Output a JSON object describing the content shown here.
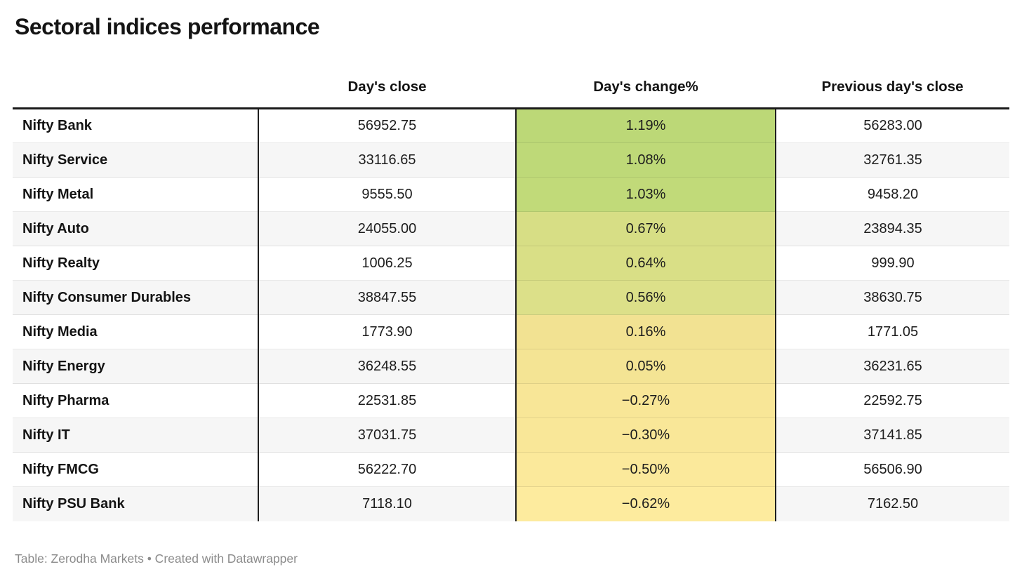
{
  "title": "Sectoral indices performance",
  "table": {
    "columns": {
      "label": "",
      "close": "Day's close",
      "change": "Day's change%",
      "prev": "Previous day's close"
    },
    "rows": [
      {
        "name": "Nifty Bank",
        "close": "56952.75",
        "change": "1.19%",
        "prev": "56283.00",
        "change_color": "#bcd877"
      },
      {
        "name": "Nifty Service",
        "close": "33116.65",
        "change": "1.08%",
        "prev": "32761.35",
        "change_color": "#bed978"
      },
      {
        "name": "Nifty Metal",
        "close": "9555.50",
        "change": "1.03%",
        "prev": "9458.20",
        "change_color": "#c1da79"
      },
      {
        "name": "Nifty Auto",
        "close": "24055.00",
        "change": "0.67%",
        "prev": "23894.35",
        "change_color": "#d7de85"
      },
      {
        "name": "Nifty Realty",
        "close": "1006.25",
        "change": "0.64%",
        "prev": "999.90",
        "change_color": "#d9df86"
      },
      {
        "name": "Nifty Consumer Durables",
        "close": "38847.55",
        "change": "0.56%",
        "prev": "38630.75",
        "change_color": "#dce089"
      },
      {
        "name": "Nifty Media",
        "close": "1773.90",
        "change": "0.16%",
        "prev": "1771.05",
        "change_color": "#f2e292"
      },
      {
        "name": "Nifty Energy",
        "close": "36248.55",
        "change": "0.05%",
        "prev": "36231.65",
        "change_color": "#f4e494"
      },
      {
        "name": "Nifty Pharma",
        "close": "22531.85",
        "change": "−0.27%",
        "prev": "22592.75",
        "change_color": "#f8e697"
      },
      {
        "name": "Nifty IT",
        "close": "37031.75",
        "change": "−0.30%",
        "prev": "37141.85",
        "change_color": "#f9e798"
      },
      {
        "name": "Nifty FMCG",
        "close": "56222.70",
        "change": "−0.50%",
        "prev": "56506.90",
        "change_color": "#fbe99b"
      },
      {
        "name": "Nifty PSU Bank",
        "close": "7118.10",
        "change": "−0.62%",
        "prev": "7162.50",
        "change_color": "#fdeb9e"
      }
    ]
  },
  "footer": "Table: Zerodha Markets • Created with Datawrapper",
  "colors": {
    "header_rule": "#1a1a1a",
    "column_divider": "#1f1f1f",
    "row_stripe": "#f6f6f6",
    "positive_top": "#bcd877",
    "negative_bottom": "#fdeb9e",
    "footer_text": "#8c8c8c"
  },
  "chart_data": {
    "type": "table",
    "title": "Sectoral indices performance",
    "columns": [
      "",
      "Day's close",
      "Day's change%",
      "Previous day's close"
    ],
    "rows": [
      [
        "Nifty Bank",
        56952.75,
        1.19,
        56283.0
      ],
      [
        "Nifty Service",
        33116.65,
        1.08,
        32761.35
      ],
      [
        "Nifty Metal",
        9555.5,
        1.03,
        9458.2
      ],
      [
        "Nifty Auto",
        24055.0,
        0.67,
        23894.35
      ],
      [
        "Nifty Realty",
        1006.25,
        0.64,
        999.9
      ],
      [
        "Nifty Consumer Durables",
        38847.55,
        0.56,
        38630.75
      ],
      [
        "Nifty Media",
        1773.9,
        0.16,
        1771.05
      ],
      [
        "Nifty Energy",
        36248.55,
        0.05,
        36231.65
      ],
      [
        "Nifty Pharma",
        22531.85,
        -0.27,
        22592.75
      ],
      [
        "Nifty IT",
        37031.75,
        -0.3,
        37141.85
      ],
      [
        "Nifty FMCG",
        56222.7,
        -0.5,
        56506.9
      ],
      [
        "Nifty PSU Bank",
        7118.1,
        -0.62,
        7162.5
      ]
    ],
    "heatmap_column": "Day's change%",
    "source": "Zerodha Markets",
    "tool": "Datawrapper"
  }
}
